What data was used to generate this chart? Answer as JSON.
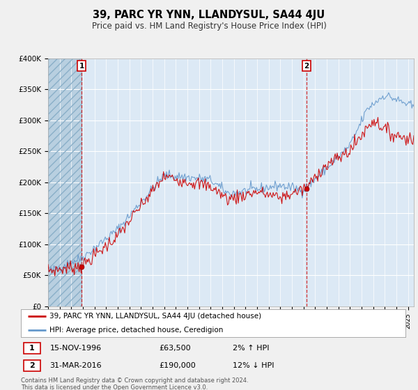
{
  "title": "39, PARC YR YNN, LLANDYSUL, SA44 4JU",
  "subtitle": "Price paid vs. HM Land Registry's House Price Index (HPI)",
  "legend_line1": "39, PARC YR YNN, LLANDYSUL, SA44 4JU (detached house)",
  "legend_line2": "HPI: Average price, detached house, Ceredigion",
  "point1_date": "15-NOV-1996",
  "point1_price": "£63,500",
  "point1_hpi": "2% ↑ HPI",
  "point2_date": "31-MAR-2016",
  "point2_price": "£190,000",
  "point2_hpi": "12% ↓ HPI",
  "footer": "Contains HM Land Registry data © Crown copyright and database right 2024.\nThis data is licensed under the Open Government Licence v3.0.",
  "ylim": [
    0,
    400000
  ],
  "yticks": [
    0,
    50000,
    100000,
    150000,
    200000,
    250000,
    300000,
    350000,
    400000
  ],
  "ytick_labels": [
    "£0",
    "£50K",
    "£100K",
    "£150K",
    "£200K",
    "£250K",
    "£300K",
    "£350K",
    "£400K"
  ],
  "xlim_start": 1994.0,
  "xlim_end": 2025.5,
  "background_color": "#f0f0f0",
  "plot_bg_color": "#dce9f5",
  "hatch_color": "#b8cfe0",
  "red_color": "#cc0000",
  "blue_color": "#6699cc",
  "grid_color": "#ffffff",
  "point1_x": 1996.88,
  "point1_y": 63500,
  "point2_x": 2016.25,
  "point2_y": 190000
}
